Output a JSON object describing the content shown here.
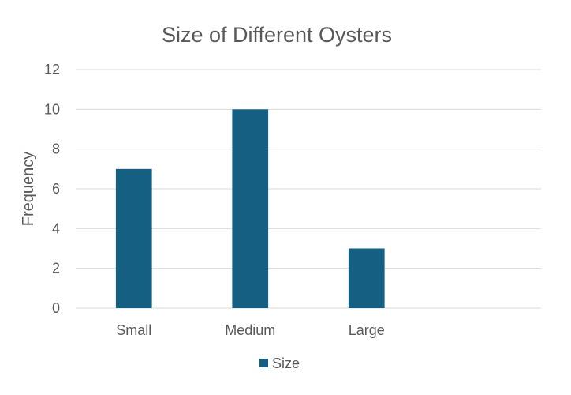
{
  "chart_data": {
    "type": "bar",
    "title": "Size of Different Oysters",
    "xlabel": "",
    "ylabel": "Frequency",
    "categories": [
      "Small",
      "Medium",
      "Large",
      ""
    ],
    "series": [
      {
        "name": "Size",
        "values": [
          7,
          10,
          3,
          null
        ],
        "color": "#156082"
      }
    ],
    "ylim": [
      0,
      12
    ],
    "yticks": [
      0,
      2,
      4,
      6,
      8,
      10,
      12
    ],
    "grid": true,
    "legend_position": "bottom"
  }
}
